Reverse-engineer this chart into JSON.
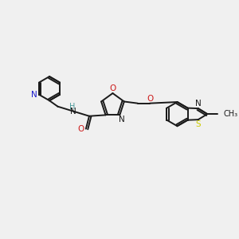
{
  "bg_color": "#f0f0f0",
  "bond_color": "#1a1a1a",
  "n_color": "#1a1acc",
  "o_color": "#cc1a1a",
  "s_color": "#cccc00",
  "h_color": "#4a9a9a",
  "figsize": [
    3.0,
    3.0
  ],
  "dpi": 100,
  "xlim": [
    0,
    10
  ],
  "ylim": [
    0,
    10
  ]
}
